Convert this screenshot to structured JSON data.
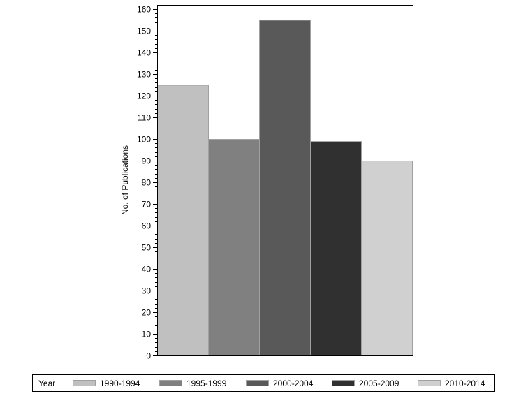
{
  "chart_data": {
    "type": "bar",
    "title": "",
    "xlabel": "",
    "ylabel": "No. of Publications",
    "ylim": [
      0,
      160
    ],
    "y_ticks": [
      0,
      10,
      20,
      30,
      40,
      50,
      60,
      70,
      80,
      90,
      100,
      110,
      120,
      130,
      140,
      150,
      160
    ],
    "y_minor_step": 2,
    "grid": false,
    "legend_position": "bottom",
    "legend_title": "Year",
    "categories": [
      "1990-1994",
      "1995-1999",
      "2000-2004",
      "2005-2009",
      "2010-2014"
    ],
    "values": [
      125,
      100,
      155,
      99,
      90
    ],
    "colors": [
      "#c0c0c0",
      "#808080",
      "#595959",
      "#303030",
      "#d0d0d0"
    ]
  },
  "legend": {
    "title": "Year",
    "items": [
      {
        "label": "1990-1994",
        "color": "#c0c0c0"
      },
      {
        "label": "1995-1999",
        "color": "#808080"
      },
      {
        "label": "2000-2004",
        "color": "#595959"
      },
      {
        "label": "2005-2009",
        "color": "#303030"
      },
      {
        "label": "2010-2014",
        "color": "#d0d0d0"
      }
    ]
  }
}
